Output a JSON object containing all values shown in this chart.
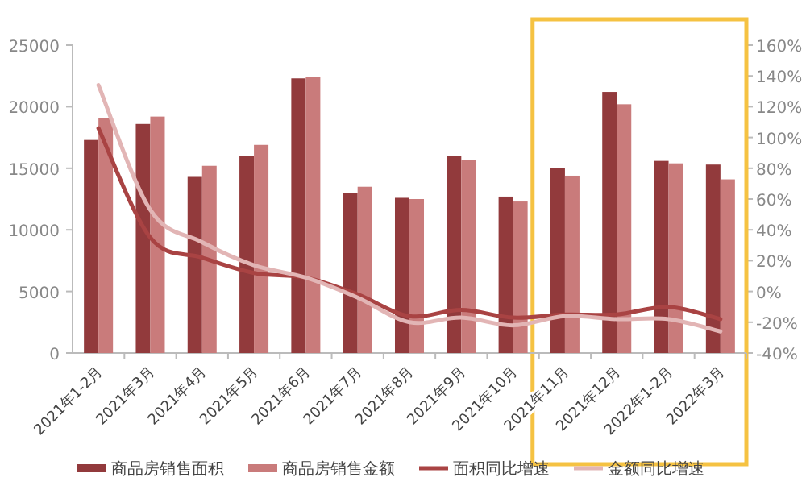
{
  "chart_data": {
    "type": "bar",
    "categories": [
      "2021年1-2月",
      "2021年3月",
      "2021年4月",
      "2021年5月",
      "2021年6月",
      "2021年7月",
      "2021年8月",
      "2021年9月",
      "2021年10月",
      "2021年11月",
      "2021年12月",
      "2022年1-2月",
      "2022年3月"
    ],
    "series": [
      {
        "name": "商品房销售面积",
        "color": "#923a3c",
        "values": [
          17300,
          18600,
          14300,
          16000,
          22300,
          13000,
          12600,
          16000,
          12700,
          15000,
          21200,
          15600,
          15300
        ]
      },
      {
        "name": "商品房销售金额",
        "color": "#c97b7b",
        "values": [
          19100,
          19200,
          15200,
          16900,
          22400,
          13500,
          12500,
          15700,
          12300,
          14400,
          20200,
          15400,
          14100
        ]
      },
      {
        "name": "面积同比增速",
        "type": "line",
        "axis": "y2",
        "color": "#a94343",
        "values": [
          106,
          35,
          22,
          12,
          9,
          -2,
          -16,
          -12,
          -17,
          -15,
          -15,
          -10,
          -18
        ]
      },
      {
        "name": "金额同比增速",
        "type": "line",
        "axis": "y2",
        "color": "#e2b5b5",
        "values": [
          134,
          53,
          32,
          17,
          9,
          -4,
          -20,
          -17,
          -22,
          -16,
          -18,
          -18,
          -26
        ]
      }
    ],
    "ylim": [
      0,
      25000
    ],
    "yticks": [
      0,
      5000,
      10000,
      15000,
      20000,
      25000
    ],
    "y2lim": [
      -40,
      160
    ],
    "y2ticks": [
      {
        "value": -40,
        "label": "-40%"
      },
      {
        "value": -20,
        "label": "-20%"
      },
      {
        "value": 0,
        "label": "0%"
      },
      {
        "value": 20,
        "label": "20%"
      },
      {
        "value": 40,
        "label": "40%"
      },
      {
        "value": 60,
        "label": "60%"
      },
      {
        "value": 80,
        "label": "80%"
      },
      {
        "value": 100,
        "label": "100%"
      },
      {
        "value": 120,
        "label": "120%"
      },
      {
        "value": 140,
        "label": "140%"
      },
      {
        "value": 160,
        "label": "160%"
      }
    ],
    "grid": false,
    "legend": "bottom",
    "marker": "none",
    "line_style": "solid"
  }
}
